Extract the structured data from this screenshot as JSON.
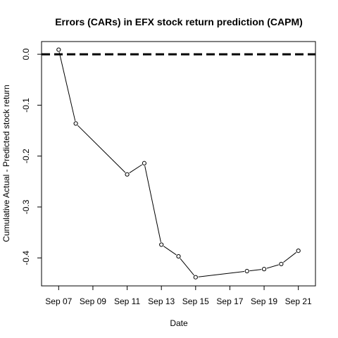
{
  "chart_data": {
    "type": "line",
    "title": "Errors (CARs) in EFX stock return prediction (CAPM)",
    "xlabel": "Date",
    "ylabel": "Cumulative Actual - Predicted stock return",
    "x": [
      "2017-09-07",
      "2017-09-08",
      "2017-09-11",
      "2017-09-12",
      "2017-09-13",
      "2017-09-14",
      "2017-09-15",
      "2017-09-18",
      "2017-09-19",
      "2017-09-20",
      "2017-09-21"
    ],
    "values": [
      0.009,
      -0.136,
      -0.236,
      -0.214,
      -0.374,
      -0.397,
      -0.438,
      -0.426,
      -0.422,
      -0.412,
      -0.386
    ],
    "xticks": [
      "2017-09-07",
      "2017-09-09",
      "2017-09-11",
      "2017-09-13",
      "2017-09-15",
      "2017-09-17",
      "2017-09-19",
      "2017-09-21"
    ],
    "xtick_labels": [
      "Sep 07",
      "Sep 09",
      "Sep 11",
      "Sep 13",
      "Sep 15",
      "Sep 17",
      "Sep 19",
      "Sep 21"
    ],
    "yticks": [
      0.0,
      -0.1,
      -0.2,
      -0.3,
      -0.4
    ],
    "ytick_labels": [
      "0.0",
      "-0.1",
      "-0.2",
      "-0.3",
      "-0.4"
    ],
    "xlim": [
      "2017-09-06",
      "2017-09-22"
    ],
    "ylim": [
      -0.455,
      0.025
    ],
    "reference_line": {
      "y": 0.0,
      "style": "dashed",
      "color": "#000000"
    },
    "series_color": "#000000",
    "marker": "open-circle",
    "grid": false,
    "legend": "none"
  }
}
